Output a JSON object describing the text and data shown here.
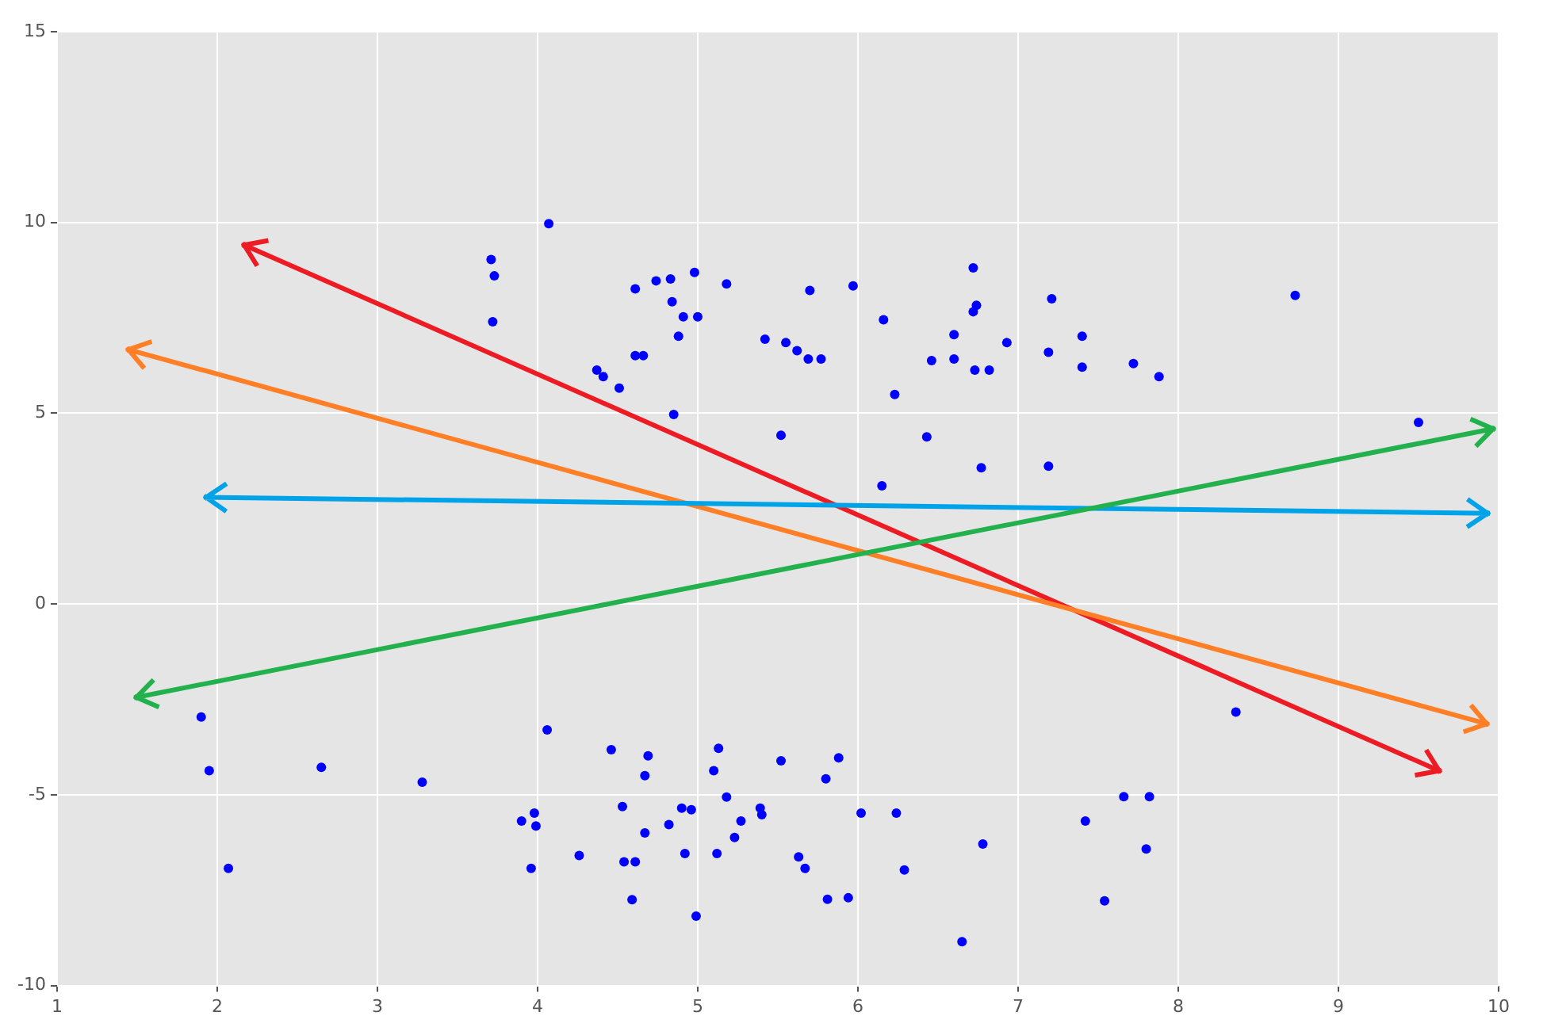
{
  "chart_data": {
    "type": "scatter",
    "xlim": [
      1,
      10
    ],
    "ylim": [
      -10,
      15
    ],
    "xticks": [
      1,
      2,
      3,
      4,
      5,
      6,
      7,
      8,
      9,
      10
    ],
    "yticks": [
      -10,
      -5,
      0,
      5,
      10,
      15
    ],
    "grid": true,
    "legend": false,
    "series": [
      {
        "type": "scatter",
        "marker": "circle",
        "color": "#0000ff",
        "x": [
          4.07,
          3.71,
          3.73,
          3.72,
          4.61,
          4.74,
          4.83,
          4.98,
          5.18,
          5.42,
          4.84,
          4.91,
          5.0,
          4.88,
          4.61,
          4.66,
          4.37,
          4.41,
          4.51,
          4.85,
          6.72,
          5.7,
          5.97,
          6.74,
          6.72,
          7.21,
          6.16,
          5.55,
          5.62,
          5.69,
          5.77,
          6.6,
          6.46,
          6.6,
          6.73,
          6.82,
          6.93,
          7.19,
          7.4,
          7.4,
          7.72,
          6.23,
          5.52,
          6.43,
          6.77,
          7.19,
          6.15,
          7.88,
          8.73,
          9.5,
          1.9,
          1.95,
          2.65,
          3.28,
          2.07,
          4.06,
          3.98,
          3.9,
          3.99,
          3.96,
          4.46,
          4.69,
          4.67,
          5.13,
          5.1,
          5.52,
          5.18,
          4.53,
          4.9,
          4.96,
          5.39,
          5.4,
          5.27,
          4.82,
          4.67,
          5.23,
          4.26,
          4.54,
          4.61,
          4.92,
          5.12,
          4.59,
          4.99,
          5.88,
          5.8,
          6.02,
          6.24,
          5.63,
          5.67,
          6.29,
          5.81,
          5.94,
          6.78,
          6.65,
          7.42,
          7.66,
          7.82,
          7.8,
          7.54,
          8.36
        ],
        "values": [
          9.97,
          9.03,
          8.6,
          7.4,
          8.26,
          8.47,
          8.52,
          8.69,
          8.39,
          6.94,
          7.92,
          7.53,
          7.53,
          7.02,
          6.51,
          6.51,
          6.13,
          5.96,
          5.66,
          4.97,
          8.81,
          8.22,
          8.34,
          7.83,
          7.66,
          8.0,
          7.45,
          6.85,
          6.64,
          6.42,
          6.42,
          7.06,
          6.38,
          6.42,
          6.13,
          6.13,
          6.85,
          6.6,
          7.02,
          6.21,
          6.3,
          5.49,
          4.42,
          4.38,
          3.57,
          3.61,
          3.1,
          5.96,
          8.09,
          4.76,
          -2.96,
          -4.37,
          -4.28,
          -4.67,
          -6.93,
          -3.3,
          -5.48,
          -5.69,
          -5.82,
          -6.93,
          -3.82,
          -3.98,
          -4.5,
          -3.78,
          -4.37,
          -4.11,
          -5.06,
          -5.31,
          -5.35,
          -5.39,
          -5.35,
          -5.52,
          -5.69,
          -5.78,
          -6.0,
          -6.12,
          -6.59,
          -6.76,
          -6.76,
          -6.54,
          -6.54,
          -7.75,
          -8.18,
          -4.03,
          -4.58,
          -5.48,
          -5.48,
          -6.63,
          -6.93,
          -6.97,
          -7.74,
          -7.7,
          -6.29,
          -8.85,
          -5.69,
          -5.05,
          -5.05,
          -6.42,
          -7.78,
          -2.83
        ]
      }
    ]
  }
}
